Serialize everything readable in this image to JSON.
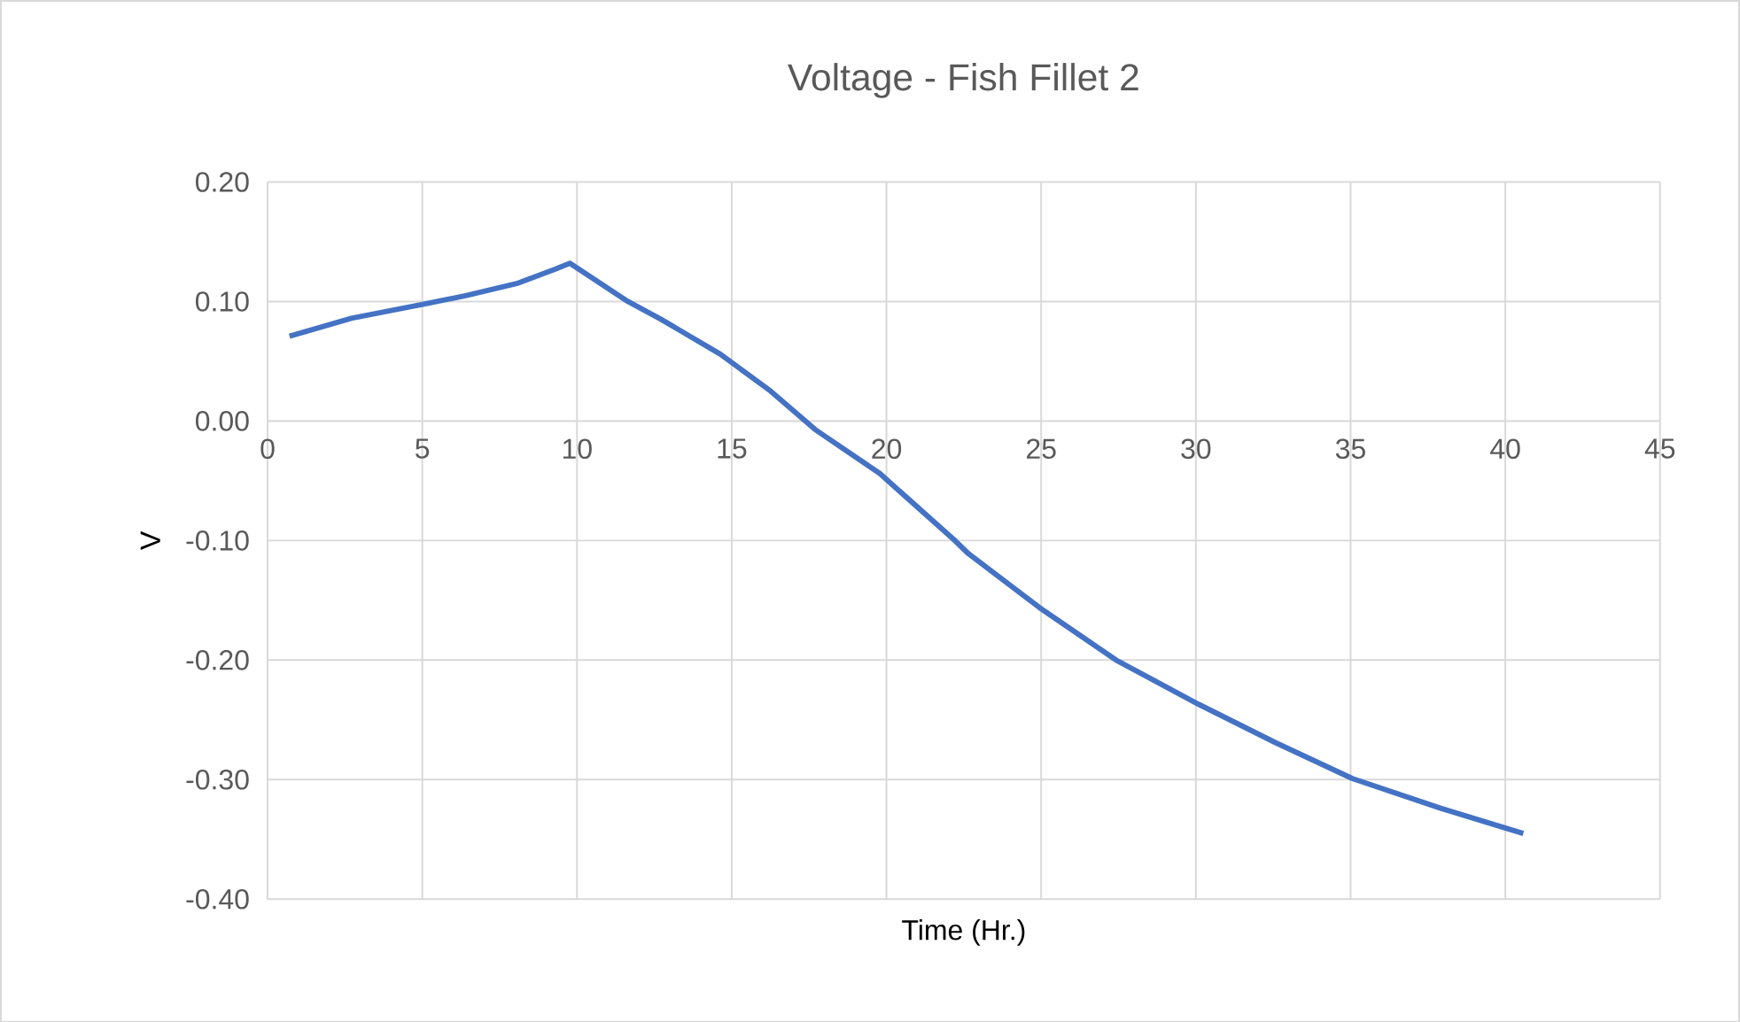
{
  "chart_data": {
    "type": "line",
    "title": "Voltage - Fish Fillet 2",
    "xlabel": "Time (Hr.)",
    "ylabel": "V",
    "xlim": [
      0,
      45
    ],
    "xticks": [
      0,
      5,
      10,
      15,
      20,
      25,
      30,
      35,
      40,
      45
    ],
    "ylim": [
      -0.4,
      0.2
    ],
    "yticks": [
      {
        "value": -0.4,
        "label": "-0.40"
      },
      {
        "value": -0.3,
        "label": "-0.30"
      },
      {
        "value": -0.2,
        "label": "-0.20"
      },
      {
        "value": -0.1,
        "label": "-0.10"
      },
      {
        "value": 0,
        "label": "0.00"
      },
      {
        "value": 0.1,
        "label": "0.10"
      },
      {
        "value": 0.2,
        "label": "0.20"
      }
    ],
    "grid": true,
    "series": [
      {
        "color": "#4472c4",
        "x": [
          0.71,
          2.71,
          5.09,
          6.43,
          8.05,
          9.29,
          9.77,
          11.58,
          12.72,
          14.63,
          16.26,
          17.69,
          19.79,
          22.17,
          22.65,
          24.94,
          27.42,
          30.09,
          32.57,
          35.05,
          37.91,
          40.58
        ],
        "values": [
          0.071,
          0.086,
          0.098,
          0.105,
          0.115,
          0.127,
          0.132,
          0.101,
          0.085,
          0.056,
          0.025,
          -0.007,
          -0.044,
          -0.099,
          -0.111,
          -0.156,
          -0.2,
          -0.237,
          -0.269,
          -0.299,
          -0.324,
          -0.345
        ]
      }
    ]
  }
}
